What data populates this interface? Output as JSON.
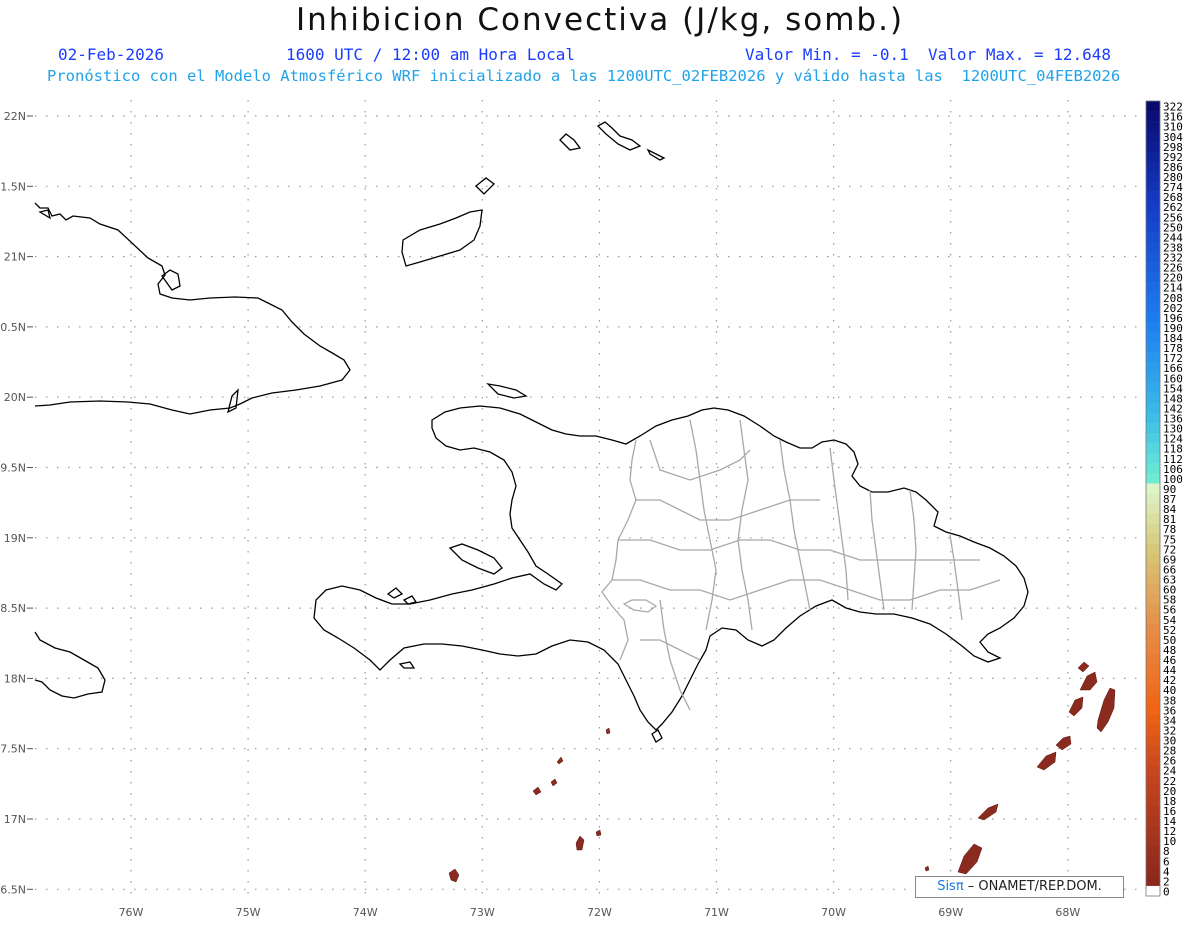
{
  "header": {
    "title": "Inhibicion Convectiva (J/kg, somb.)",
    "date": "02-Feb-2026",
    "time": "1600 UTC / 12:00 am Hora Local",
    "min_max": "Valor Min. = -0.1  Valor Max. = 12.648",
    "forecast": "Pronóstico con el Modelo Atmosférico WRF inicializado a las 1200UTC_02FEB2026 y válido hasta las  1200UTC_04FEB2026"
  },
  "map": {
    "lat_labels": [
      "22N",
      "1.5N",
      "21N",
      "0.5N",
      "20N",
      "9.5N",
      "19N",
      "8.5N",
      "18N",
      "7.5N",
      "17N",
      "6.5N"
    ],
    "lon_labels": [
      "76W",
      "75W",
      "74W",
      "73W",
      "72W",
      "71W",
      "70W",
      "69W",
      "68W"
    ],
    "coast_color": "#000000",
    "province_color": "#a8a8a8",
    "shade_color": "#8b2a1e"
  },
  "colorbar": {
    "levels": [
      "322",
      "316",
      "310",
      "304",
      "298",
      "292",
      "286",
      "280",
      "274",
      "268",
      "262",
      "256",
      "250",
      "244",
      "238",
      "232",
      "226",
      "220",
      "214",
      "208",
      "202",
      "196",
      "190",
      "184",
      "178",
      "172",
      "166",
      "160",
      "154",
      "148",
      "142",
      "136",
      "130",
      "124",
      "118",
      "112",
      "106",
      "100",
      "90",
      "87",
      "84",
      "81",
      "78",
      "75",
      "72",
      "69",
      "66",
      "63",
      "60",
      "58",
      "56",
      "54",
      "52",
      "50",
      "48",
      "46",
      "44",
      "42",
      "40",
      "38",
      "36",
      "34",
      "32",
      "30",
      "28",
      "26",
      "24",
      "22",
      "20",
      "18",
      "16",
      "14",
      "12",
      "10",
      "8",
      "6",
      "4",
      "2",
      "0"
    ]
  },
  "credit": {
    "sis": "Sis",
    "pi": "π",
    "rest": " – ONAMET/REP.DOM."
  }
}
